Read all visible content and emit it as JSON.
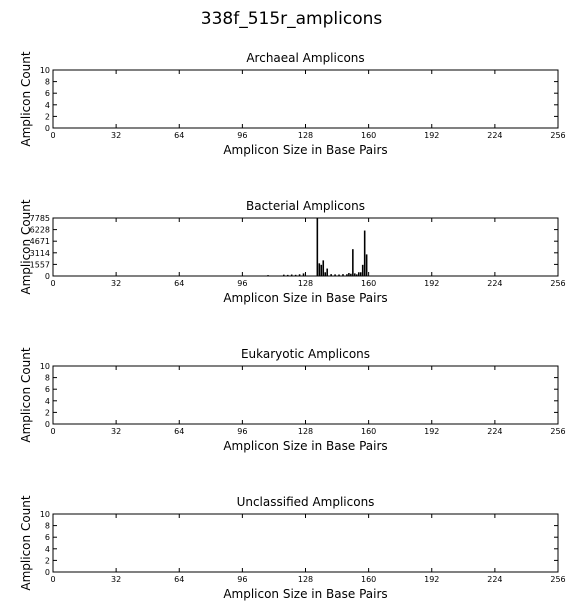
{
  "figure": {
    "title": "338f_515r_amplicons"
  },
  "chart_data": [
    {
      "type": "bar",
      "title": "Archaeal Amplicons",
      "xlabel": "Amplicon Size in Base Pairs",
      "ylabel": "Amplicon Count",
      "xlim": [
        0,
        256
      ],
      "ylim": [
        0,
        10
      ],
      "xticks": [
        "0",
        "32",
        "64",
        "96",
        "128",
        "160",
        "192",
        "224",
        "256"
      ],
      "yticks": [
        "0",
        "2",
        "4",
        "6",
        "8",
        "10"
      ],
      "x": [],
      "values": []
    },
    {
      "type": "bar",
      "title": "Bacterial Amplicons",
      "xlabel": "Amplicon Size in Base Pairs",
      "ylabel": "Amplicon Count",
      "xlim": [
        0,
        256
      ],
      "ylim": [
        0,
        7785
      ],
      "xticks": [
        "0",
        "32",
        "64",
        "96",
        "128",
        "160",
        "192",
        "224",
        "256"
      ],
      "yticks": [
        "0",
        "1557",
        "3114",
        "4671",
        "6228",
        "7785"
      ],
      "x": [
        109,
        117,
        119,
        121,
        123,
        125,
        127,
        134,
        135,
        136,
        137,
        138,
        139,
        141,
        143,
        145,
        147,
        149,
        150,
        151,
        152,
        153,
        154,
        155,
        156,
        157,
        158,
        159
      ],
      "values": [
        120,
        180,
        150,
        200,
        160,
        230,
        350,
        7785,
        1700,
        1500,
        2100,
        500,
        1000,
        250,
        220,
        200,
        250,
        240,
        400,
        300,
        3600,
        350,
        220,
        500,
        500,
        1500,
        6100,
        2900
      ]
    },
    {
      "type": "bar",
      "title": "Eukaryotic Amplicons",
      "xlabel": "Amplicon Size in Base Pairs",
      "ylabel": "Amplicon Count",
      "xlim": [
        0,
        256
      ],
      "ylim": [
        0,
        10
      ],
      "xticks": [
        "0",
        "32",
        "64",
        "96",
        "128",
        "160",
        "192",
        "224",
        "256"
      ],
      "yticks": [
        "0",
        "2",
        "4",
        "6",
        "8",
        "10"
      ],
      "x": [],
      "values": []
    },
    {
      "type": "bar",
      "title": "Unclassified Amplicons",
      "xlabel": "Amplicon Size in Base Pairs",
      "ylabel": "Amplicon Count",
      "xlim": [
        0,
        256
      ],
      "ylim": [
        0,
        10
      ],
      "xticks": [
        "0",
        "32",
        "64",
        "96",
        "128",
        "160",
        "192",
        "224",
        "256"
      ],
      "yticks": [
        "0",
        "2",
        "4",
        "6",
        "8",
        "10"
      ],
      "x": [],
      "values": []
    }
  ]
}
